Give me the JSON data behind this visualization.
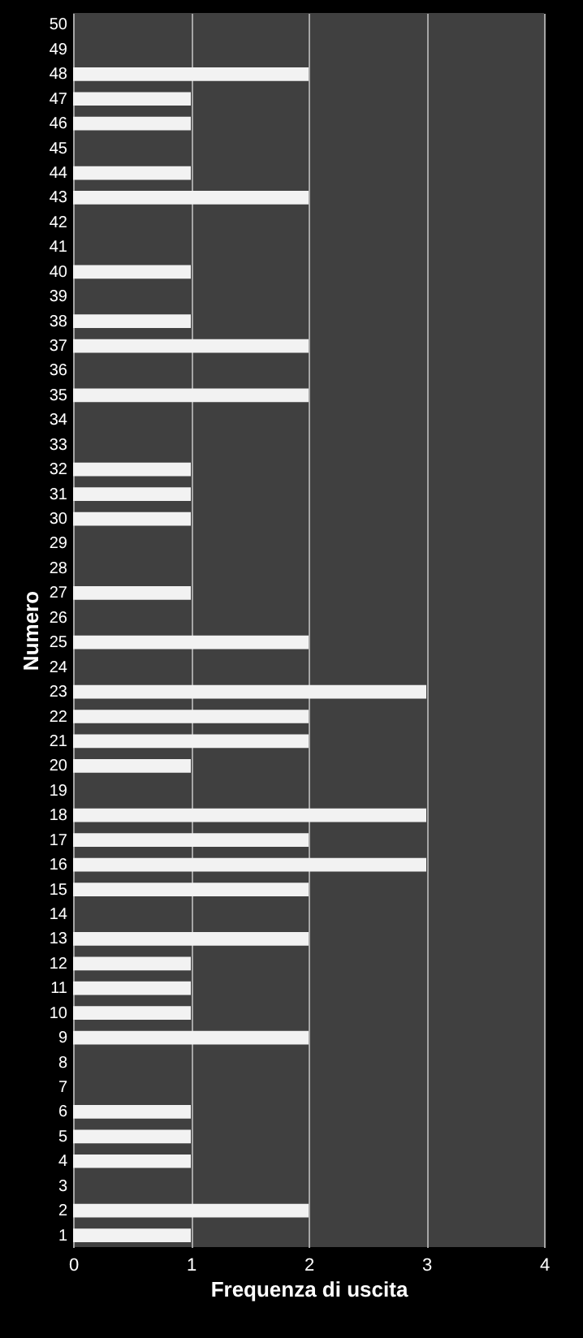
{
  "chart_data": {
    "type": "bar",
    "orientation": "horizontal",
    "xlabel": "Frequenza di uscita",
    "ylabel": "Numero",
    "categories": [
      "50",
      "49",
      "48",
      "47",
      "46",
      "45",
      "44",
      "43",
      "42",
      "41",
      "40",
      "39",
      "38",
      "37",
      "36",
      "35",
      "34",
      "33",
      "32",
      "31",
      "30",
      "29",
      "28",
      "27",
      "26",
      "25",
      "24",
      "23",
      "22",
      "21",
      "20",
      "19",
      "18",
      "17",
      "16",
      "15",
      "14",
      "13",
      "12",
      "11",
      "10",
      "9",
      "8",
      "7",
      "6",
      "5",
      "4",
      "3",
      "2",
      "1"
    ],
    "values": [
      0,
      0,
      2,
      1,
      1,
      0,
      1,
      2,
      0,
      0,
      1,
      0,
      1,
      2,
      0,
      2,
      0,
      0,
      1,
      1,
      1,
      0,
      0,
      1,
      0,
      2,
      0,
      3,
      2,
      2,
      1,
      0,
      3,
      2,
      3,
      2,
      0,
      2,
      1,
      1,
      1,
      2,
      0,
      0,
      1,
      1,
      1,
      0,
      2,
      1
    ],
    "color": "#f2f2f2",
    "xlim": [
      0,
      4
    ],
    "xticks": [
      0,
      1,
      2,
      3,
      4
    ],
    "grid": "x"
  }
}
